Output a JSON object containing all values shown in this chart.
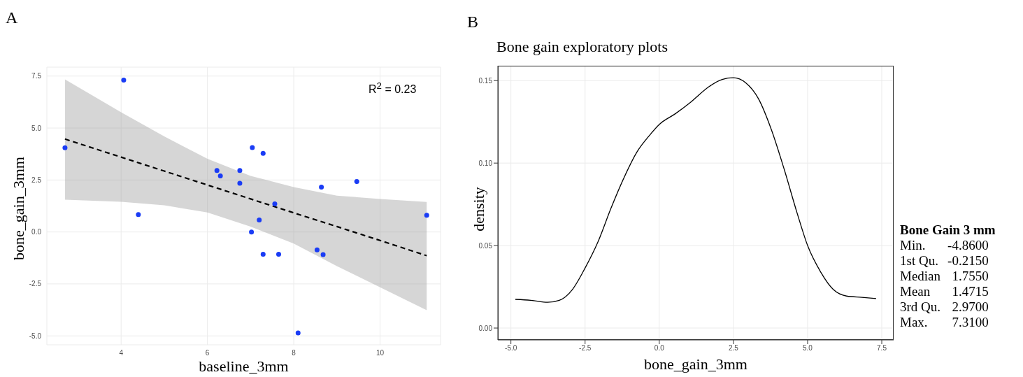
{
  "chart_data": [
    {
      "type": "scatter",
      "xlabel": "baseline_3mm",
      "ylabel": "bone_gain_3mm",
      "annotations": [
        "A",
        "R$^{2}$ = 0.23"
      ],
      "xlim": [
        2.28,
        11.4
      ],
      "ylim": [
        -5.43,
        7.93
      ],
      "xticks": [
        4,
        6,
        8,
        10
      ],
      "yticks": [
        {
          "value": -5,
          "label": "-5.0"
        },
        -2.5,
        {
          "value": 0,
          "label": "0.0"
        },
        2.5,
        {
          "value": 5,
          "label": "5.0"
        },
        7.5
      ],
      "grid": true,
      "marker": "circle",
      "series": [
        {
          "type": "scatter",
          "color": "#1a3cf5",
          "x": [
            2.7,
            4.06,
            4.4,
            6.22,
            6.3,
            6.75,
            6.75,
            7.04,
            7.29,
            7.2,
            7.02,
            7.56,
            7.29,
            7.65,
            8.1,
            8.54,
            8.68,
            8.64,
            9.46,
            11.08
          ],
          "values": [
            4.05,
            7.31,
            0.84,
            2.96,
            2.7,
            2.96,
            2.34,
            4.06,
            3.78,
            0.58,
            0.0,
            1.35,
            -1.07,
            -1.07,
            -4.86,
            -0.86,
            -1.09,
            2.16,
            2.43,
            0.8
          ]
        },
        {
          "type": "line",
          "color": "#000000",
          "line_style": "dashed",
          "marker": "none",
          "x": [
            2.7,
            4,
            5,
            6,
            7,
            8,
            9,
            10,
            11.08
          ],
          "values": [
            4.47,
            3.6,
            2.93,
            2.26,
            1.59,
            0.92,
            0.26,
            -0.41,
            -1.14
          ],
          "lower": [
            1.55,
            1.45,
            1.28,
            0.94,
            0.26,
            -0.56,
            -1.64,
            -2.66,
            -3.76
          ],
          "upper": [
            7.34,
            5.76,
            4.6,
            3.52,
            2.7,
            2.16,
            1.75,
            1.59,
            1.44
          ]
        }
      ]
    },
    {
      "type": "line",
      "title": "Bone gain exploratory plots",
      "xlabel": "bone_gain_3mm",
      "ylabel": "density",
      "annotations": [
        "B"
      ],
      "xlim": [
        -5.44,
        7.9
      ],
      "ylim": [
        -0.0072,
        0.159
      ],
      "xticks": [
        {
          "value": -5,
          "label": "-5.0"
        },
        -2.5,
        {
          "value": 0,
          "label": "0.0"
        },
        2.5,
        {
          "value": 5,
          "label": "5.0"
        },
        7.5
      ],
      "yticks": [
        {
          "value": 0,
          "label": "0.00"
        },
        0.05,
        {
          "value": 0.1,
          "label": "0.10"
        },
        0.15
      ],
      "grid": true,
      "marker": "none",
      "line_style": "solid",
      "series": [
        {
          "color": "#000000",
          "x": [
            -4.85,
            -4.33,
            -3.76,
            -3.37,
            -2.93,
            -2.5,
            -2.06,
            -1.63,
            -1.19,
            -0.76,
            -0.32,
            0,
            0.55,
            1.07,
            1.68,
            2.12,
            2.5,
            2.91,
            3.35,
            3.78,
            4.22,
            4.65,
            5.0,
            5.44,
            5.87,
            6.31,
            6.83,
            7.31
          ],
          "values": [
            0.0174,
            0.0168,
            0.0156,
            0.0168,
            0.0233,
            0.0364,
            0.0525,
            0.0725,
            0.0911,
            0.1065,
            0.117,
            0.1234,
            0.13,
            0.1371,
            0.1464,
            0.1507,
            0.1517,
            0.1487,
            0.1388,
            0.1202,
            0.0957,
            0.0695,
            0.05,
            0.034,
            0.0233,
            0.0194,
            0.0186,
            0.0179
          ]
        }
      ]
    },
    {
      "type": "other",
      "title": "Bone Gain 3 mm",
      "categories": [
        "Min.",
        "1st Qu.",
        "Median",
        "Mean",
        "3rd Qu.",
        "Max."
      ],
      "value_labels": [
        "-4.8600",
        "-0.2150",
        "1.7550",
        "1.4715",
        "2.9700",
        "7.3100"
      ]
    }
  ]
}
